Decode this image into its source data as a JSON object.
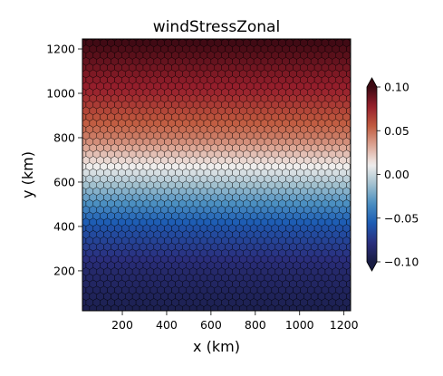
{
  "chart_data": {
    "type": "heatmap",
    "title": "windStressZonal",
    "xlabel": "x (km)",
    "ylabel": "y (km)",
    "xlim": [
      20,
      1230
    ],
    "ylim": [
      20,
      1245
    ],
    "x_ticks": [
      200,
      400,
      600,
      800,
      1000,
      1200
    ],
    "x_tick_labels": [
      "200",
      "400",
      "600",
      "800",
      "1000",
      "1200"
    ],
    "y_ticks": [
      200,
      400,
      600,
      800,
      1000,
      1200
    ],
    "y_tick_labels": [
      "200",
      "400",
      "600",
      "800",
      "1000",
      "1200"
    ],
    "grid": false,
    "cells": "hexagonal mesh",
    "field_description": "zonal wind stress varying with y only",
    "field_profile": {
      "y": [
        30,
        200,
        400,
        630,
        800,
        1000,
        1240
      ],
      "value": [
        -0.095,
        -0.085,
        -0.06,
        0.0,
        0.045,
        0.075,
        0.1
      ]
    },
    "colorbar": {
      "min": -0.1,
      "max": 0.1,
      "extend": "both",
      "colormap": "balance (diverging)",
      "ticks": [
        -0.1,
        -0.05,
        0.0,
        0.05,
        0.1
      ],
      "tick_labels": [
        "−0.10",
        "−0.05",
        "0.00",
        "0.05",
        "0.10"
      ]
    },
    "colors": {
      "cmap_stops": [
        "#181c43",
        "#2b2f7e",
        "#1d5cb4",
        "#4a8ec1",
        "#a3c1cf",
        "#f1eeed",
        "#dca594",
        "#c05a3f",
        "#971f2c",
        "#3c0912"
      ],
      "cell_edge": "#000000"
    }
  }
}
